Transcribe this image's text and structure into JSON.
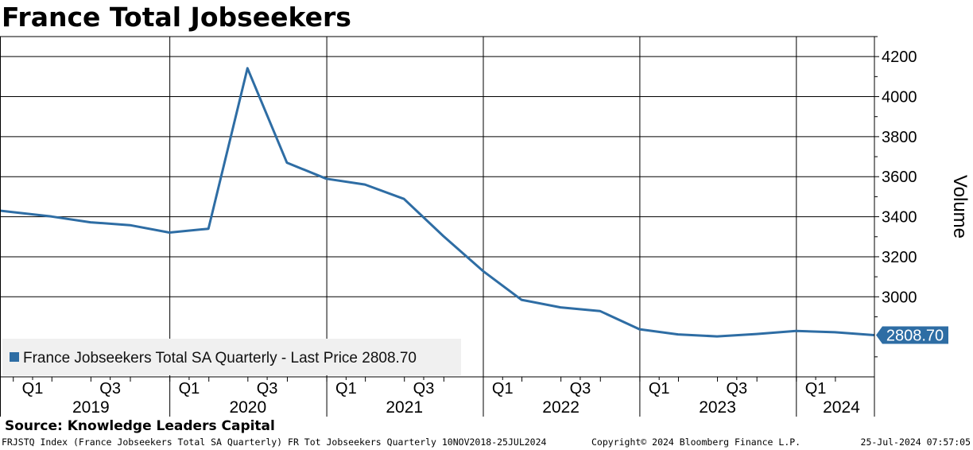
{
  "header": {
    "title": "France Total Jobseekers"
  },
  "chart_data": {
    "type": "line",
    "title": "France Total Jobseekers",
    "ylabel": "Volume",
    "xlabel": "",
    "ylim": [
      2600,
      4300
    ],
    "y_ticks": [
      3000,
      3200,
      3400,
      3600,
      3800,
      4000,
      4200
    ],
    "x_range": [
      "2018-12-01",
      "2024-07-01"
    ],
    "grid": true,
    "legend_position": "bottom-left",
    "quarter_tick_labels": [
      {
        "date": "2019-02-15",
        "label": "Q1"
      },
      {
        "date": "2019-08-15",
        "label": "Q3"
      },
      {
        "date": "2020-02-15",
        "label": "Q1"
      },
      {
        "date": "2020-08-15",
        "label": "Q3"
      },
      {
        "date": "2021-02-15",
        "label": "Q1"
      },
      {
        "date": "2021-08-15",
        "label": "Q3"
      },
      {
        "date": "2022-02-15",
        "label": "Q1"
      },
      {
        "date": "2022-08-15",
        "label": "Q3"
      },
      {
        "date": "2023-02-15",
        "label": "Q1"
      },
      {
        "date": "2023-08-15",
        "label": "Q3"
      },
      {
        "date": "2024-02-15",
        "label": "Q1"
      }
    ],
    "year_labels": [
      {
        "date": "2019-07-01",
        "label": "2019"
      },
      {
        "date": "2020-07-01",
        "label": "2020"
      },
      {
        "date": "2021-07-01",
        "label": "2021"
      },
      {
        "date": "2022-07-01",
        "label": "2022"
      },
      {
        "date": "2023-07-01",
        "label": "2023"
      },
      {
        "date": "2024-04-15",
        "label": "2024"
      }
    ],
    "year_boundaries": [
      "2020-01-01",
      "2021-01-01",
      "2022-01-01",
      "2023-01-01",
      "2024-01-01"
    ],
    "series": [
      {
        "name": "France Jobseekers Total SA Quarterly",
        "color": "#2e6da4",
        "x": [
          "2018-12-01",
          "2019-03-31",
          "2019-06-30",
          "2019-09-30",
          "2019-12-31",
          "2020-03-31",
          "2020-06-30",
          "2020-09-30",
          "2020-12-31",
          "2021-03-31",
          "2021-06-30",
          "2021-09-30",
          "2021-12-31",
          "2022-03-31",
          "2022-06-30",
          "2022-09-30",
          "2022-12-31",
          "2023-03-31",
          "2023-06-30",
          "2023-09-30",
          "2023-12-31",
          "2024-03-31",
          "2024-06-30"
        ],
        "y": [
          3430,
          3401,
          3372,
          3358,
          3321,
          3340,
          4142,
          3670,
          3590,
          3561,
          3489,
          3303,
          3129,
          2985,
          2947,
          2929,
          2838,
          2812,
          2802,
          2814,
          2829,
          2823,
          2808.7
        ]
      }
    ],
    "last_price": {
      "label": "2808.70",
      "value": 2808.7
    },
    "legend_text": "France Jobseekers Total SA Quarterly - Last Price 2808.70"
  },
  "source": "Source: Knowledge Leaders Capital",
  "footer": {
    "left": "FRJSTQ Index (France Jobseekers Total SA Quarterly) FR Tot Jobseekers  Quarterly 10NOV2018-25JUL2024",
    "center": "Copyright© 2024 Bloomberg Finance L.P.",
    "right": "25-Jul-2024 07:57:05"
  }
}
